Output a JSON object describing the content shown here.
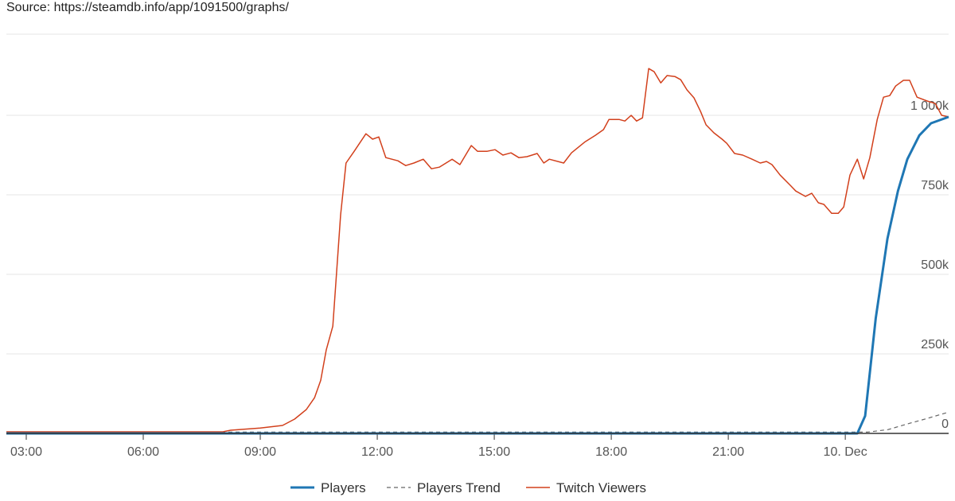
{
  "chart_data": {
    "type": "line",
    "source": "Source: https://steamdb.info/app/1091500/graphs/",
    "xlim": [
      2.49,
      26.65
    ],
    "xticks": [
      {
        "value": 3,
        "label": "03:00"
      },
      {
        "value": 6,
        "label": "06:00"
      },
      {
        "value": 9,
        "label": "09:00"
      },
      {
        "value": 12,
        "label": "12:00"
      },
      {
        "value": 15,
        "label": "15:00"
      },
      {
        "value": 18,
        "label": "18:00"
      },
      {
        "value": 21,
        "label": "21:00"
      },
      {
        "value": 24,
        "label": "10. Dec"
      }
    ],
    "ylim": [
      0,
      1250000
    ],
    "yticks": [
      0,
      {
        "value": 250000,
        "label": "250k"
      },
      {
        "value": 500000,
        "label": "500k"
      },
      {
        "value": 750000,
        "label": "750k"
      },
      {
        "value": 1000000,
        "label": "1 000k"
      }
    ],
    "grid": true,
    "legend": "bottom",
    "series": [
      {
        "name": "Players",
        "color": "#1f77b4",
        "dash": false,
        "width": 3,
        "x": [
          2.49,
          24.31,
          24.51,
          24.78,
          25.08,
          25.35,
          25.59,
          25.9,
          26.2,
          26.65
        ],
        "values": [
          0,
          0,
          55000,
          362000,
          612000,
          762000,
          862000,
          937000,
          975000,
          995000
        ]
      },
      {
        "name": "Players Trend",
        "color": "#666666",
        "dash": true,
        "width": 1.2,
        "x": [
          2.49,
          24.57,
          25.1,
          25.6,
          26.1,
          26.65
        ],
        "values": [
          4000,
          4000,
          12000,
          30000,
          47000,
          67000
        ]
      },
      {
        "name": "Twitch Viewers",
        "color": "#d2401c",
        "dash": false,
        "width": 1.5,
        "x": [
          2.49,
          8.04,
          8.24,
          9.0,
          9.57,
          9.88,
          10.18,
          10.39,
          10.55,
          10.69,
          10.86,
          11.06,
          11.2,
          11.41,
          11.71,
          11.88,
          12.04,
          12.22,
          12.53,
          12.73,
          12.94,
          13.18,
          13.39,
          13.59,
          13.92,
          14.12,
          14.41,
          14.57,
          14.82,
          15.02,
          15.22,
          15.43,
          15.63,
          15.84,
          16.1,
          16.27,
          16.41,
          16.78,
          16.98,
          17.33,
          17.59,
          17.8,
          17.94,
          18.2,
          18.35,
          18.51,
          18.65,
          18.8,
          18.96,
          19.1,
          19.27,
          19.43,
          19.63,
          19.78,
          19.94,
          20.12,
          20.29,
          20.43,
          20.63,
          20.84,
          20.96,
          21.16,
          21.37,
          21.61,
          21.82,
          21.98,
          22.12,
          22.33,
          22.59,
          22.73,
          22.98,
          23.14,
          23.31,
          23.45,
          23.65,
          23.82,
          23.96,
          24.12,
          24.31,
          24.47,
          24.63,
          24.82,
          24.98,
          25.14,
          25.29,
          25.49,
          25.65,
          25.84,
          26.1,
          26.31,
          26.47,
          26.65
        ],
        "values": [
          5000,
          5000,
          10000,
          17000,
          25000,
          45000,
          75000,
          112000,
          167000,
          262000,
          337000,
          687000,
          850000,
          887000,
          942000,
          925000,
          932000,
          867000,
          857000,
          842000,
          850000,
          862000,
          832000,
          837000,
          862000,
          845000,
          905000,
          887000,
          887000,
          892000,
          875000,
          882000,
          867000,
          870000,
          880000,
          850000,
          862000,
          850000,
          882000,
          917000,
          937000,
          955000,
          987000,
          987000,
          982000,
          1000000,
          982000,
          992000,
          1147000,
          1137000,
          1102000,
          1125000,
          1122000,
          1112000,
          1080000,
          1055000,
          1012000,
          970000,
          945000,
          925000,
          912000,
          880000,
          875000,
          862000,
          850000,
          855000,
          845000,
          812000,
          780000,
          762000,
          745000,
          755000,
          725000,
          720000,
          692000,
          692000,
          712000,
          812000,
          862000,
          800000,
          867000,
          987000,
          1057000,
          1062000,
          1092000,
          1110000,
          1110000,
          1057000,
          1045000,
          1037000,
          1000000,
          995000
        ]
      }
    ]
  }
}
